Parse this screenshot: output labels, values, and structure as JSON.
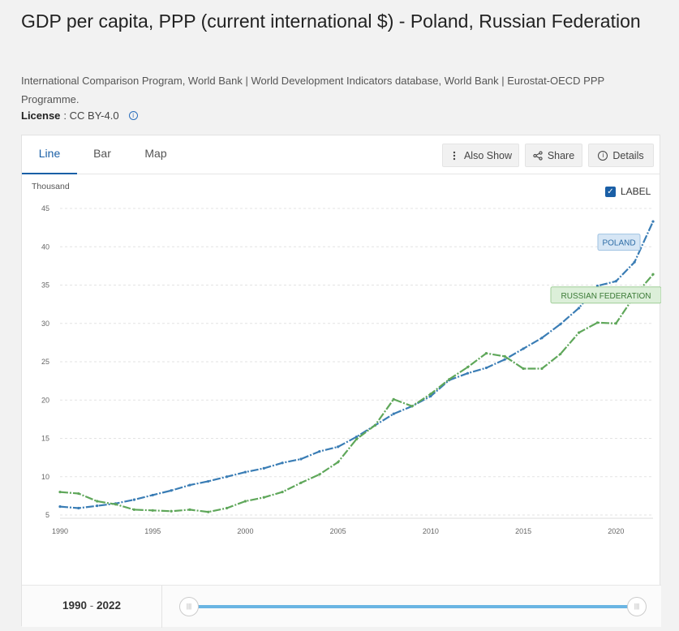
{
  "header": {
    "title": "GDP per capita, PPP (current international $) - Poland, Russian Federation",
    "source": "International Comparison Program, World Bank | World Development Indicators database, World Bank | Eurostat-OECD PPP Programme.",
    "license_label": "License",
    "license_value": ": CC BY-4.0",
    "info_glyph": "i"
  },
  "tabs": [
    {
      "label": "Line"
    },
    {
      "label": "Bar"
    },
    {
      "label": "Map"
    }
  ],
  "toolbar": {
    "also_show": "Also Show",
    "share": "Share",
    "details": "Details"
  },
  "chart_controls": {
    "label_toggle": "LABEL",
    "label_checked": true
  },
  "footer": {
    "range_start": "1990",
    "range_sep": " - ",
    "range_end": "2022"
  },
  "colors": {
    "poland": "#3a7db5",
    "russia": "#5fa75a",
    "slider": "#6ab5e3",
    "accent": "#1a5fa6"
  },
  "chart_data": {
    "type": "line",
    "title": "GDP per capita, PPP (current international $) - Poland, Russian Federation",
    "ylabel": "Thousand",
    "xlabel": "",
    "xlim": [
      1990,
      2022
    ],
    "ylim": [
      5,
      45
    ],
    "x_ticks": [
      1990,
      1995,
      2000,
      2005,
      2010,
      2015,
      2020
    ],
    "y_ticks": [
      5,
      10,
      15,
      20,
      25,
      30,
      35,
      40,
      45
    ],
    "grid": "horizontal",
    "x": [
      1990,
      1991,
      1992,
      1993,
      1994,
      1995,
      1996,
      1997,
      1998,
      1999,
      2000,
      2001,
      2002,
      2003,
      2004,
      2005,
      2006,
      2007,
      2008,
      2009,
      2010,
      2011,
      2012,
      2013,
      2014,
      2015,
      2016,
      2017,
      2018,
      2019,
      2020,
      2021,
      2022
    ],
    "series": [
      {
        "name": "POLAND",
        "color": "#3a7db5",
        "values": [
          6.1,
          5.9,
          6.2,
          6.5,
          7.0,
          7.6,
          8.2,
          8.9,
          9.4,
          10.0,
          10.6,
          11.1,
          11.8,
          12.3,
          13.3,
          13.9,
          15.2,
          16.7,
          18.2,
          19.2,
          20.5,
          22.6,
          23.5,
          24.2,
          25.3,
          26.7,
          28.1,
          29.9,
          32.0,
          34.9,
          35.5,
          38.0,
          43.3
        ]
      },
      {
        "name": "RUSSIAN FEDERATION",
        "color": "#5fa75a",
        "values": [
          8.0,
          7.8,
          6.8,
          6.4,
          5.7,
          5.6,
          5.5,
          5.7,
          5.4,
          5.9,
          6.8,
          7.3,
          8.0,
          9.2,
          10.3,
          11.9,
          14.9,
          16.7,
          20.1,
          19.2,
          20.8,
          22.7,
          24.3,
          26.1,
          25.7,
          24.1,
          24.1,
          26.0,
          28.8,
          30.1,
          30.0,
          33.6,
          36.4
        ]
      }
    ]
  }
}
